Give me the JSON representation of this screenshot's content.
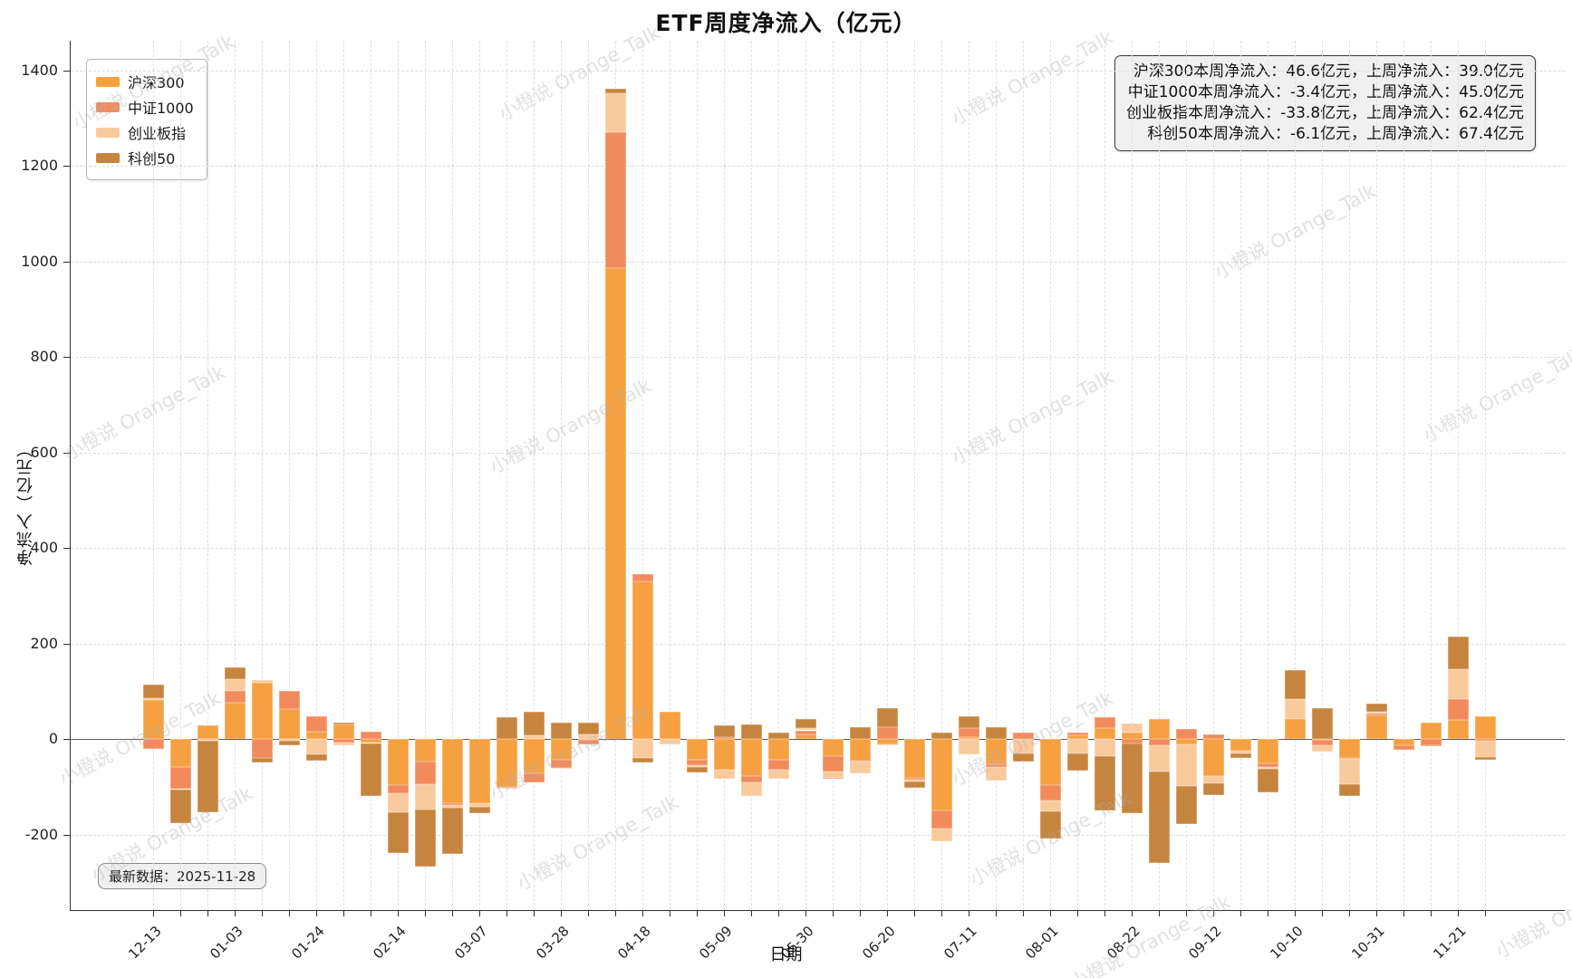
{
  "title": "ETF周度净流入（亿元）",
  "watermark_text": "小橙说 Orange_Talk",
  "latest_label": "最新数据：2025-11-28",
  "stats_box": {
    "lines": [
      "沪深300本周净流入：46.6亿元，上周净流入：39.0亿元",
      "中证1000本周净流入：-3.4亿元，上周净流入：45.0亿元",
      "创业板指本周净流入：-33.8亿元，上周净流入：62.4亿元",
      "科创50本周净流入：-6.1亿元，上周净流入：67.4亿元"
    ]
  },
  "colors": {
    "hs300": "#F5A142",
    "zz1000": "#F28B5C",
    "cyb": "#F9CA9C",
    "kc50": "#C6853F",
    "grid": "#dcdcdc",
    "zero_line": "#5f5f5f"
  },
  "chart_data": {
    "type": "bar",
    "stacked": true,
    "title": "ETF周度净流入（亿元）",
    "xlabel": "日期",
    "ylabel": "净流入（亿元）",
    "yticks": [
      -200,
      0,
      200,
      400,
      600,
      800,
      1000,
      1200,
      1400
    ],
    "ylim": [
      -358,
      1462
    ],
    "n_bars": 50,
    "x_tick_labels": [
      "12-13",
      "01-03",
      "01-24",
      "02-14",
      "03-07",
      "03-28",
      "04-18",
      "05-09",
      "05-30",
      "06-20",
      "07-11",
      "08-01",
      "08-22",
      "09-12",
      "10-10",
      "10-31",
      "11-21"
    ],
    "x_tick_positions": [
      0,
      3,
      6,
      9,
      12,
      15,
      18,
      21,
      24,
      27,
      30,
      33,
      36,
      39,
      42,
      45,
      48
    ],
    "grid": "dashed",
    "legend_position": "upper left",
    "series": [
      {
        "name": "沪深300",
        "color": "#F5A142",
        "values": [
          81,
          -58,
          28,
          75,
          118,
          62,
          16,
          30,
          -8,
          -97,
          -47,
          -135,
          -135,
          -100,
          -72,
          -44,
          -2,
          985,
          330,
          57,
          -43,
          -65,
          -77,
          -43,
          9,
          -36,
          -46,
          -11,
          -81,
          -150,
          4,
          -53,
          -2,
          -96,
          8,
          23,
          14,
          42,
          -11,
          -77,
          -25,
          -51,
          42,
          -2,
          -40,
          49,
          -14,
          35,
          39.0,
          46.6
        ]
      },
      {
        "name": "中证1000",
        "color": "#F28B5C",
        "values": [
          -21,
          -47,
          -2,
          25,
          -39,
          38,
          32,
          -8,
          15,
          -16,
          -47,
          -3,
          0,
          -2,
          -19,
          -16,
          -9,
          285,
          15,
          0,
          -12,
          4,
          -14,
          -21,
          9,
          -32,
          -2,
          24,
          -4,
          -37,
          19,
          -6,
          14,
          -32,
          6,
          22,
          -10,
          -13,
          20,
          10,
          0,
          -8,
          0,
          -11,
          -2,
          5,
          -8,
          -13,
          45.0,
          -3.4
        ]
      },
      {
        "name": "创业板指",
        "color": "#F9CA9C",
        "values": [
          4,
          -2,
          -2,
          25,
          5,
          -3,
          -33,
          -6,
          -2,
          -41,
          -53,
          -6,
          -8,
          -3,
          8,
          -2,
          10,
          82,
          -40,
          -11,
          -3,
          -19,
          -29,
          -20,
          5,
          -13,
          -24,
          -1,
          -4,
          -28,
          -33,
          -29,
          -28,
          -24,
          -30,
          -36,
          19,
          -55,
          -87,
          -15,
          -5,
          -3,
          41,
          -13,
          -53,
          2,
          0,
          0,
          62.4,
          -33.8
        ]
      },
      {
        "name": "科创50",
        "color": "#C6853F",
        "values": [
          28,
          -70,
          -150,
          25,
          -11,
          -11,
          -12,
          5,
          -110,
          -85,
          -120,
          -97,
          -13,
          45,
          48,
          35,
          25,
          10,
          -10,
          0,
          -13,
          25,
          31,
          13,
          18,
          -3,
          25,
          40,
          -14,
          14,
          24,
          25,
          -17,
          -56,
          -36,
          -114,
          -145,
          -192,
          -80,
          -25,
          -10,
          -49,
          61,
          64,
          -25,
          18,
          0,
          -3,
          67.4,
          -6.1
        ]
      }
    ],
    "annotations": {
      "stats_lines": [
        "沪深300本周净流入：46.6亿元，上周净流入：39.0亿元",
        "中证1000本周净流入：-3.4亿元，上周净流入：45.0亿元",
        "创业板指本周净流入：-33.8亿元，上周净流入：62.4亿元",
        "科创50本周净流入：-6.1亿元，上周净流入：67.4亿元"
      ],
      "latest_data": "最新数据：2025-11-28"
    }
  }
}
